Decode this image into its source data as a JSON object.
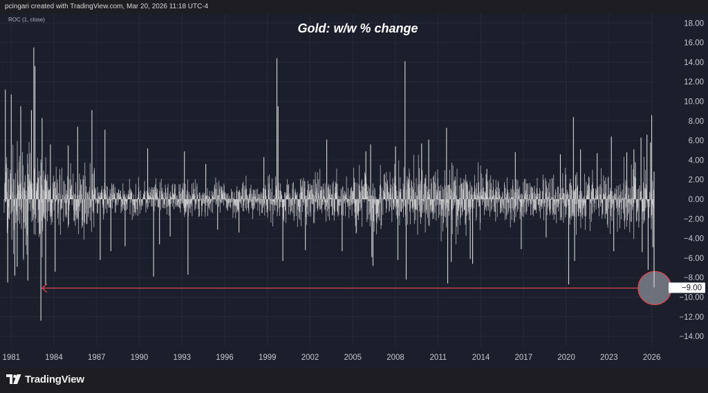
{
  "header": {
    "attribution": "pcingari created with TradingView.com, Mar 20, 2026 11:18 UTC-4"
  },
  "indicator_label": "ROC (1, close)",
  "footer": {
    "logo_text": "TradingView",
    "logo_icon": "tradingview-logo-icon"
  },
  "colors": {
    "background": "#1b1f2c",
    "bars": "#d9d9d9",
    "annotation": "#e0464e",
    "gridline": "#262b38"
  },
  "chart_data": {
    "type": "bar",
    "title": "Gold: w/w % change",
    "xlabel": "",
    "ylabel": "",
    "ylim": [
      -15.5,
      19.5
    ],
    "x_range": [
      "1980-07",
      "2026-03"
    ],
    "x_ticks": [
      "1981",
      "1984",
      "1987",
      "1990",
      "1993",
      "1996",
      "1999",
      "2002",
      "2005",
      "2008",
      "2011",
      "2014",
      "2017",
      "2020",
      "2023",
      "2026"
    ],
    "y_ticks": [
      "18.00",
      "16.00",
      "14.00",
      "12.00",
      "10.00",
      "8.00",
      "6.00",
      "4.00",
      "2.00",
      "0.00",
      "−2.00",
      "−4.00",
      "−6.00",
      "−8.00",
      "−10.00",
      "−12.00",
      "−14.00"
    ],
    "grid": true,
    "series": [
      {
        "values_note_free": true,
        "x": [
          "1980-08",
          "1980-10",
          "1981-01",
          "1981-04",
          "1981-06",
          "1981-09",
          "1982-03",
          "1982-06",
          "1982-08",
          "1982-09",
          "1983-02",
          "1983-03",
          "1983-06",
          "1983-10",
          "1984-02",
          "1985-01",
          "1985-09",
          "1986-09",
          "1987-04",
          "1987-08",
          "1988-01",
          "1989-01",
          "1990-08",
          "1991-01",
          "1991-06",
          "1992-03",
          "1993-03",
          "1993-06",
          "1994-09",
          "1995-07",
          "1997-01",
          "1998-10",
          "1999-09",
          "1999-10",
          "2000-02",
          "2001-09",
          "2003-03",
          "2004-04",
          "2005-12",
          "2006-04",
          "2006-05",
          "2006-06",
          "2008-01",
          "2008-03",
          "2008-09",
          "2008-10",
          "2009-11",
          "2010-05",
          "2011-08",
          "2011-09",
          "2011-12",
          "2013-04",
          "2013-06",
          "2014-06",
          "2016-06",
          "2016-11",
          "2018-08",
          "2019-08",
          "2020-03",
          "2020-07",
          "2020-08",
          "2021-01",
          "2022-03",
          "2023-03",
          "2023-05",
          "2024-04",
          "2024-10",
          "2025-04",
          "2025-05",
          "2025-09",
          "2025-10",
          "2025-12",
          "2026-01",
          "2026-02",
          "2026-03"
        ],
        "values": [
          11.2,
          -8.5,
          10.7,
          -7.8,
          -6.9,
          9.5,
          -8.3,
          9.1,
          15.5,
          13.6,
          -12.4,
          8.3,
          -8.7,
          5.6,
          -7.4,
          5.5,
          7.4,
          9.1,
          -6.2,
          7.1,
          -5.3,
          -4.8,
          5.2,
          -7.9,
          -4.6,
          -3.8,
          4.9,
          -7.7,
          3.6,
          -3.1,
          -3.4,
          4.3,
          14.4,
          9.5,
          -6.3,
          -5.2,
          6.1,
          -5.3,
          4.9,
          5.6,
          -5.9,
          -6.8,
          5.4,
          -6.2,
          14.1,
          -8.2,
          5.7,
          6.1,
          7.3,
          -8.6,
          -6.4,
          -6.1,
          -6.6,
          3.1,
          4.8,
          -5.1,
          -3.9,
          4.6,
          -8.7,
          8.4,
          -6.3,
          5.1,
          4.7,
          6.4,
          -5.3,
          4.8,
          5.1,
          6.3,
          -5.4,
          6.6,
          -7.2,
          5.8,
          8.6,
          -4.9,
          -9.0
        ]
      }
    ],
    "annotations": [
      {
        "label": "−9.00",
        "value": -9.0,
        "date": "2026-03",
        "arrow_to": "1983-03"
      }
    ]
  }
}
